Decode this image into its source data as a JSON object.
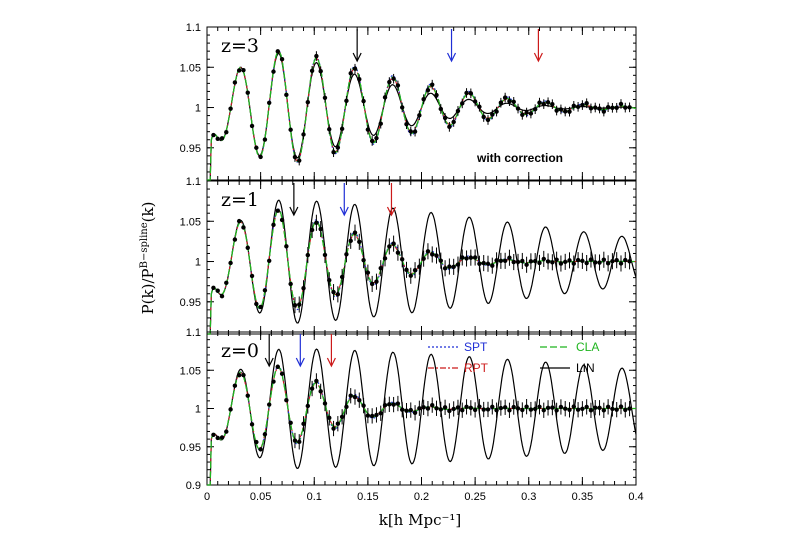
{
  "chart_data": {
    "type": "line",
    "xlabel": "k[h Mpc⁻¹]",
    "ylabel": "P(k)/P",
    "ylabel_sup": "B−spline",
    "ylabel_end": "(k)",
    "xlim": [
      0,
      0.4
    ],
    "ylim": [
      0.9,
      1.1
    ],
    "xticks": [
      "0",
      "0.05",
      "0.1",
      "0.15",
      "0.2",
      "0.25",
      "0.3",
      "0.35",
      "0.4"
    ],
    "yticks": [
      "0.9",
      "0.95",
      "1",
      "1.05",
      "1.1"
    ],
    "colors": {
      "SPT": "#1f2fd6",
      "RPT": "#cc1a1a",
      "CLA": "#1fb51f",
      "LIN": "#000000",
      "data": "#000000"
    },
    "legend": [
      {
        "name": "SPT",
        "color": "#1f2fd6",
        "style": "dotted"
      },
      {
        "name": "CLA",
        "color": "#1fb51f",
        "style": "dashed"
      },
      {
        "name": "RPT",
        "color": "#cc1a1a",
        "style": "dashdot"
      },
      {
        "name": "LIN",
        "color": "#000000",
        "style": "solid"
      }
    ],
    "panels": [
      {
        "label": "z=3",
        "note": "with correction",
        "damping_k": 0.2,
        "lin_damping_k": 0.17,
        "arrows": [
          {
            "color": "#000000",
            "k": 0.14
          },
          {
            "color": "#1f2fd6",
            "k": 0.228
          },
          {
            "color": "#cc1a1a",
            "k": 0.309
          }
        ]
      },
      {
        "label": "z=1",
        "note": "",
        "damping_k": 0.15,
        "lin_damping_k": 0.4,
        "arrows": [
          {
            "color": "#000000",
            "k": 0.081
          },
          {
            "color": "#1f2fd6",
            "k": 0.128
          },
          {
            "color": "#cc1a1a",
            "k": 0.172
          }
        ]
      },
      {
        "label": "z=0",
        "note": "",
        "damping_k": 0.11,
        "lin_damping_k": 0.6,
        "arrows": [
          {
            "color": "#000000",
            "k": 0.058
          },
          {
            "color": "#1f2fd6",
            "k": 0.087
          },
          {
            "color": "#cc1a1a",
            "k": 0.116
          }
        ]
      }
    ]
  }
}
